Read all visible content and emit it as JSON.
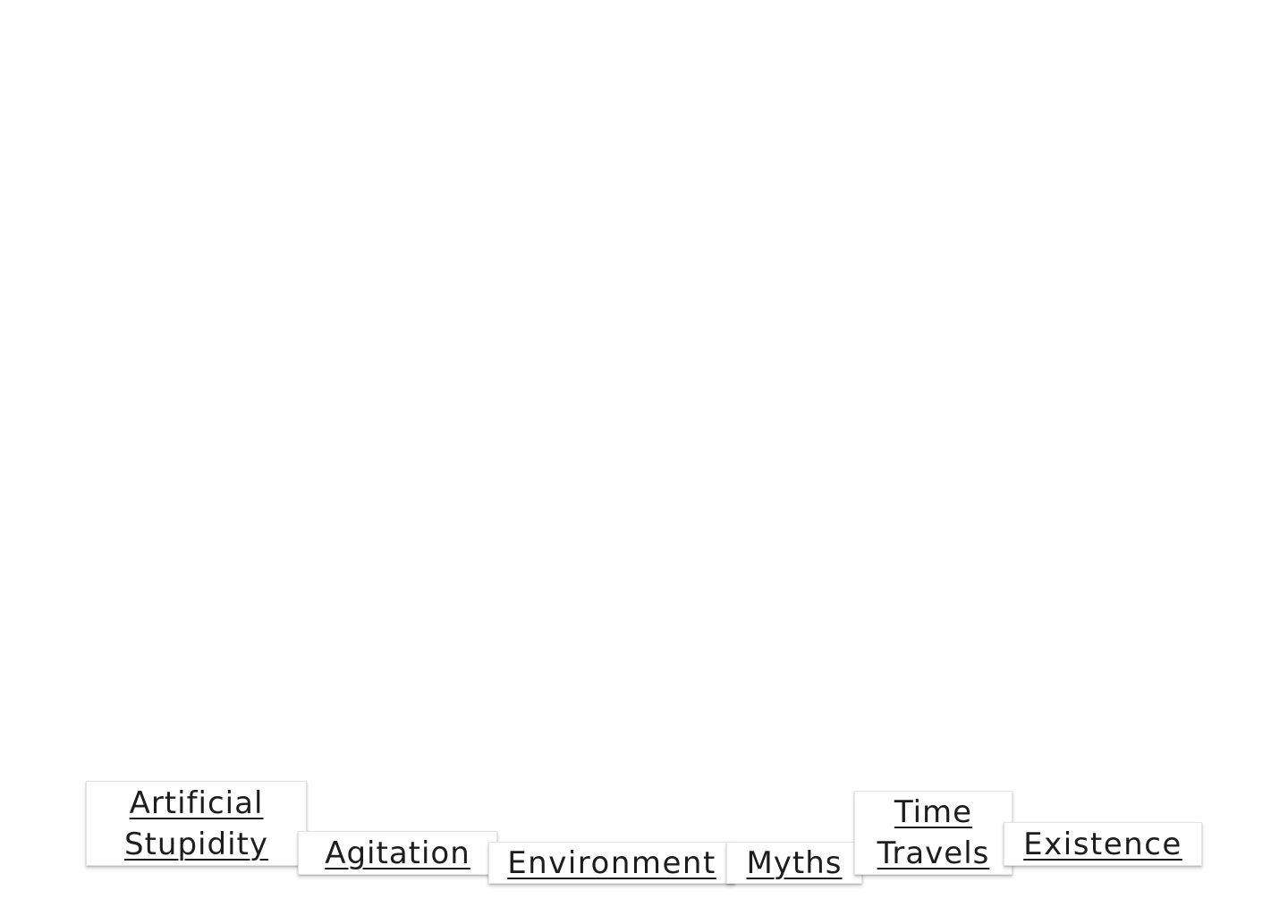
{
  "topics": [
    {
      "label": "Artificial\nStupidity"
    },
    {
      "label": "Agitation"
    },
    {
      "label": "Environment"
    },
    {
      "label": "Myths"
    },
    {
      "label": "Time\nTravels"
    },
    {
      "label": "Existence"
    }
  ]
}
